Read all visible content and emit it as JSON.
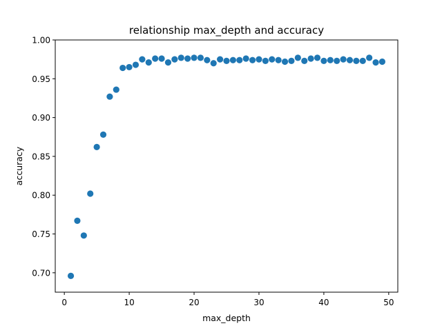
{
  "chart_data": {
    "type": "scatter",
    "title": "relationship max_depth and accuracy",
    "xlabel": "max_depth",
    "ylabel": "accuracy",
    "xlim": [
      -1.4,
      51.4
    ],
    "ylim": [
      0.675,
      1.0
    ],
    "x_ticks": [
      0,
      10,
      20,
      30,
      40,
      50
    ],
    "x_tick_labels": [
      "0",
      "10",
      "20",
      "30",
      "40",
      "50"
    ],
    "y_ticks": [
      0.7,
      0.75,
      0.8,
      0.85,
      0.9,
      0.95,
      1.0
    ],
    "y_tick_labels": [
      "0.70",
      "0.75",
      "0.80",
      "0.85",
      "0.90",
      "0.95",
      "1.00"
    ],
    "grid": false,
    "marker_color": "#1f77b4",
    "series": [
      {
        "x": [
          1,
          2,
          3,
          4,
          5,
          6,
          7,
          8,
          9,
          10,
          11,
          12,
          13,
          14,
          15,
          16,
          17,
          18,
          19,
          20,
          21,
          22,
          23,
          24,
          25,
          26,
          27,
          28,
          29,
          30,
          31,
          32,
          33,
          34,
          35,
          36,
          37,
          38,
          39,
          40,
          41,
          42,
          43,
          44,
          45,
          46,
          47,
          48,
          49
        ],
        "y": [
          0.696,
          0.767,
          0.748,
          0.802,
          0.862,
          0.878,
          0.927,
          0.936,
          0.964,
          0.965,
          0.968,
          0.975,
          0.971,
          0.976,
          0.976,
          0.971,
          0.975,
          0.977,
          0.976,
          0.977,
          0.977,
          0.974,
          0.97,
          0.975,
          0.973,
          0.974,
          0.974,
          0.976,
          0.974,
          0.975,
          0.973,
          0.975,
          0.974,
          0.972,
          0.973,
          0.977,
          0.973,
          0.976,
          0.977,
          0.973,
          0.974,
          0.973,
          0.975,
          0.974,
          0.973,
          0.973,
          0.977,
          0.971,
          0.972
        ]
      }
    ]
  }
}
